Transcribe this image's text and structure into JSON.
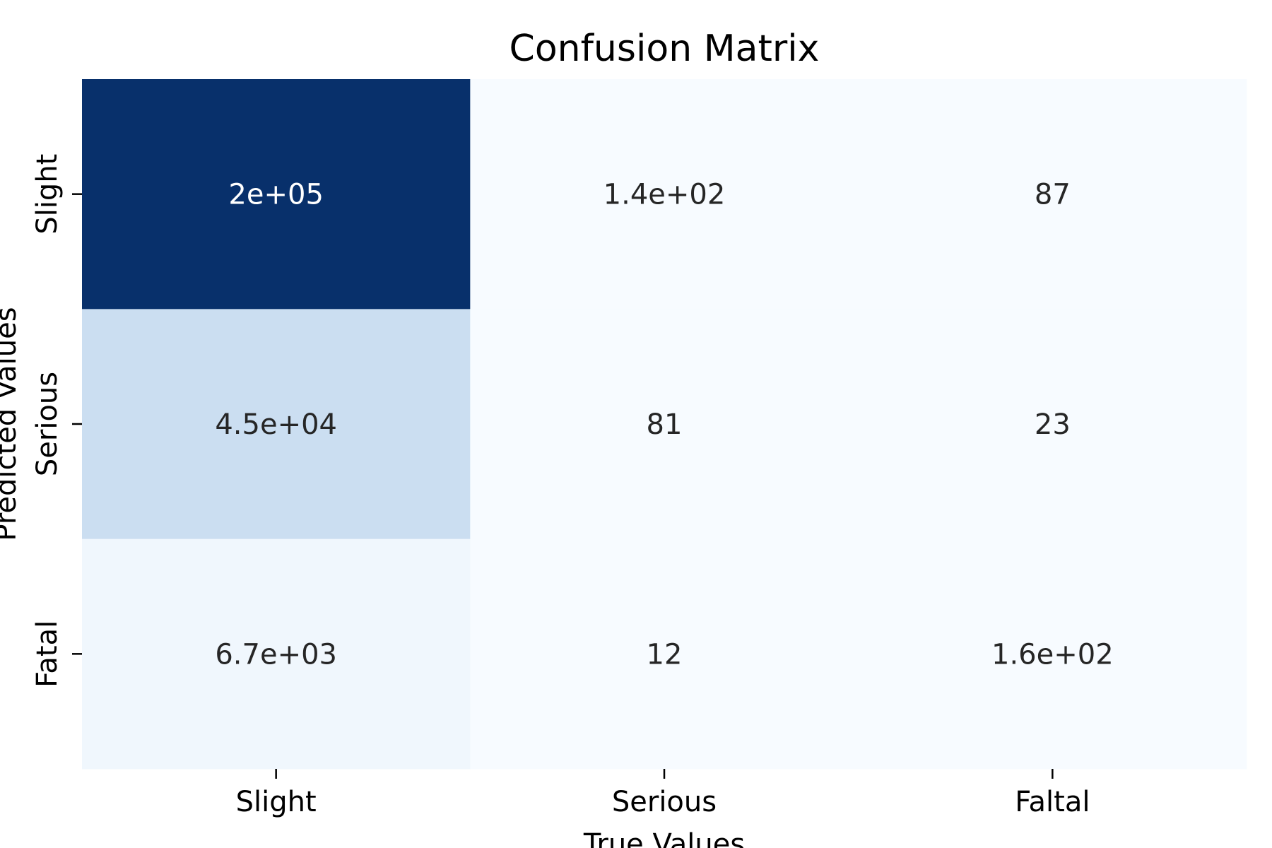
{
  "chart_data": {
    "type": "heatmap",
    "title": "Confusion Matrix",
    "xlabel": "True Values",
    "ylabel": "Predicted Values",
    "x_categories": [
      "Slight",
      "Serious",
      "Faltal"
    ],
    "y_categories": [
      "Slight",
      "Serious",
      "Fatal"
    ],
    "values": [
      [
        200000,
        140,
        87
      ],
      [
        45000,
        81,
        23
      ],
      [
        6700,
        12,
        160
      ]
    ],
    "value_labels": [
      [
        "2e+05",
        "1.4e+02",
        "87"
      ],
      [
        "4.5e+04",
        "81",
        "23"
      ],
      [
        "6.7e+03",
        "12",
        "1.6e+02"
      ]
    ],
    "colormap": "Blues",
    "colorbar": false,
    "grid": false
  }
}
